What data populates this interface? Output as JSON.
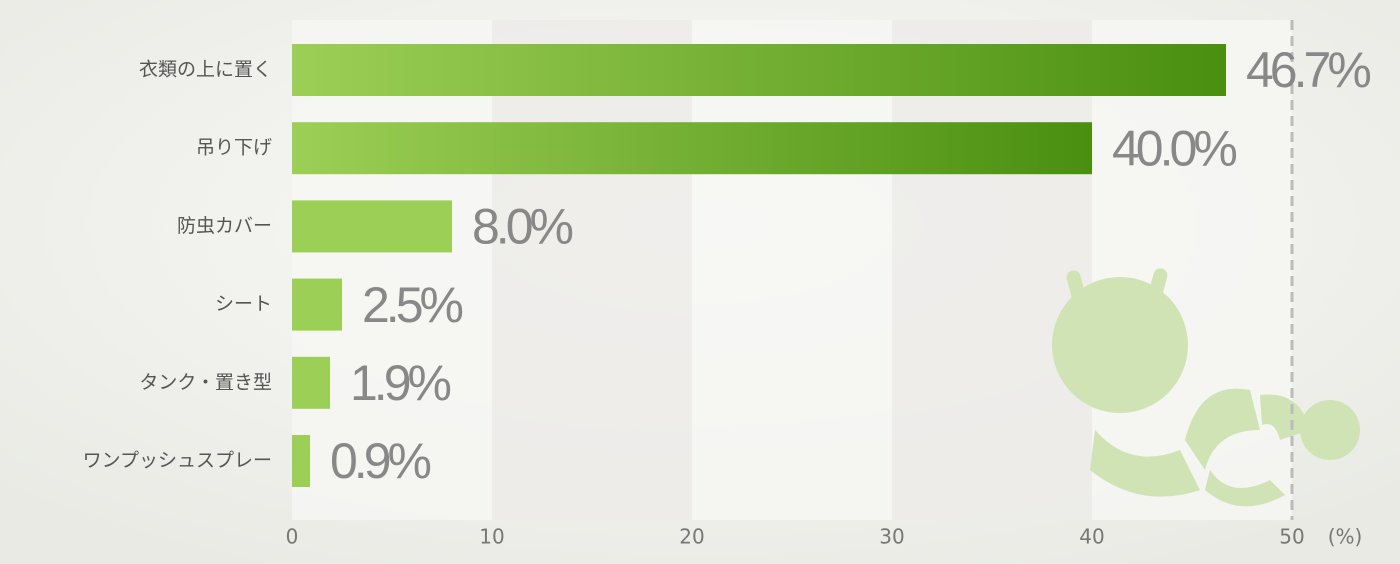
{
  "chart_data": {
    "type": "bar",
    "orientation": "horizontal",
    "categories": [
      "衣類の上に置く",
      "吊り下げ",
      "防虫カバー",
      "シート",
      "タンク・置き型",
      "ワンプッシュスプレー"
    ],
    "values": [
      46.7,
      40.0,
      8.0,
      2.5,
      1.9,
      0.9
    ],
    "value_labels": [
      "46.7%",
      "40.0%",
      "8.0%",
      "2.5%",
      "1.9%",
      "0.9%"
    ],
    "color": "#9ccf55",
    "gradient_color": "#4a8f10",
    "xlim": [
      0,
      50
    ],
    "xticks": [
      0,
      10,
      20,
      30,
      40,
      50
    ],
    "xlabel": "(%)"
  }
}
